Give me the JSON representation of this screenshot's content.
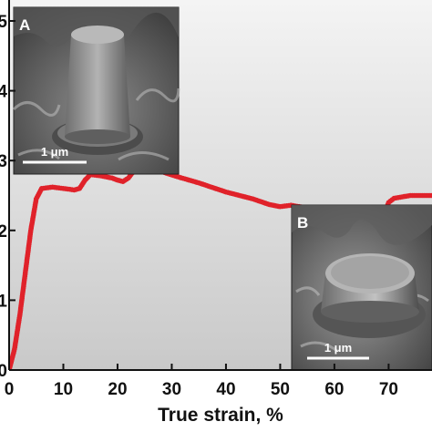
{
  "chart_data": {
    "type": "line",
    "xlabel": "True strain, %",
    "ylabel": "",
    "xlim": [
      0,
      78
    ],
    "ylim": [
      0,
      5.3
    ],
    "x_ticks": [
      "0",
      "10",
      "20",
      "30",
      "40",
      "50",
      "60",
      "70"
    ],
    "y_ticks": [
      "0",
      "1",
      "2",
      "3",
      "4",
      "5"
    ],
    "grid": false,
    "legend": "none",
    "series": [
      {
        "color": "#e0222a",
        "points": [
          [
            0,
            0
          ],
          [
            1,
            0.3
          ],
          [
            2,
            0.8
          ],
          [
            3,
            1.4
          ],
          [
            4,
            2.0
          ],
          [
            5,
            2.45
          ],
          [
            6,
            2.6
          ],
          [
            8,
            2.62
          ],
          [
            10,
            2.6
          ],
          [
            12,
            2.58
          ],
          [
            13,
            2.6
          ],
          [
            14,
            2.72
          ],
          [
            15,
            2.8
          ],
          [
            17,
            2.78
          ],
          [
            19,
            2.75
          ],
          [
            20,
            2.72
          ],
          [
            21,
            2.7
          ],
          [
            22,
            2.75
          ],
          [
            23,
            2.85
          ],
          [
            24,
            2.9
          ],
          [
            25,
            2.88
          ],
          [
            27,
            2.87
          ],
          [
            29,
            2.82
          ],
          [
            31,
            2.77
          ],
          [
            35,
            2.68
          ],
          [
            40,
            2.55
          ],
          [
            45,
            2.45
          ],
          [
            48,
            2.37
          ],
          [
            50,
            2.34
          ],
          [
            52,
            2.36
          ],
          [
            55,
            2.32
          ],
          [
            60,
            2.27
          ],
          [
            65,
            2.2
          ],
          [
            67,
            2.15
          ],
          [
            68,
            2.05
          ],
          [
            69,
            2.2
          ],
          [
            70,
            2.4
          ],
          [
            71,
            2.46
          ],
          [
            74,
            2.5
          ],
          [
            78,
            2.5
          ]
        ]
      }
    ],
    "insets": [
      {
        "label": "A",
        "scale_bar": "1 μm"
      },
      {
        "label": "B",
        "scale_bar": "1 μm"
      }
    ]
  }
}
